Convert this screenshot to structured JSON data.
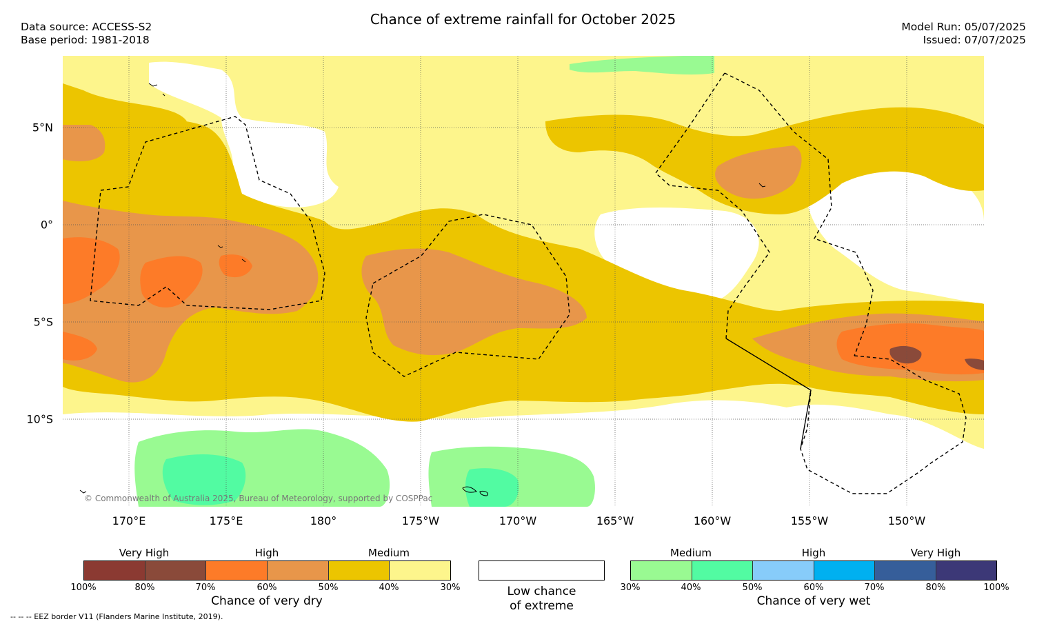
{
  "title": "Chance of extreme rainfall for October 2025",
  "data_source": "Data source: ACCESS-S2",
  "base_period": "Base period: 1981-2018",
  "model_run": "Model Run: 05/07/2025",
  "issued": "Issued: 07/07/2025",
  "copyright": "© Commonwealth of Australia 2025, Bureau of Meteorology, supported by COSPPac",
  "eez_note": "-- -- -- EEZ border V11 (Flanders Marine Institute, 2019).",
  "lat_labels": [
    "5°N",
    "0°",
    "5°S",
    "10°S"
  ],
  "lon_labels": [
    "170°E",
    "175°E",
    "180°",
    "175°W",
    "170°W",
    "165°W",
    "160°W",
    "155°W",
    "150°W"
  ],
  "dry_legend": {
    "levels": [
      "Very High",
      "High",
      "Medium"
    ],
    "ticks": [
      "100%",
      "80%",
      "70%",
      "60%",
      "50%",
      "40%",
      "30%"
    ],
    "colors": [
      "#8b3a32",
      "#8a4a3a",
      "#fd7b28",
      "#e8964a",
      "#ecc500",
      "#fdf58c"
    ],
    "caption": "Chance of very dry"
  },
  "low_legend": {
    "caption_line1": "Low chance",
    "caption_line2": "of extreme",
    "color": "#ffffff"
  },
  "wet_legend": {
    "levels": [
      "Medium",
      "High",
      "Very High"
    ],
    "ticks": [
      "30%",
      "40%",
      "50%",
      "60%",
      "70%",
      "80%",
      "100%"
    ],
    "colors": [
      "#99fa92",
      "#52fba2",
      "#87ccfa",
      "#00b0f0",
      "#365e9a",
      "#3c3877"
    ],
    "caption": "Chance of very wet"
  }
}
